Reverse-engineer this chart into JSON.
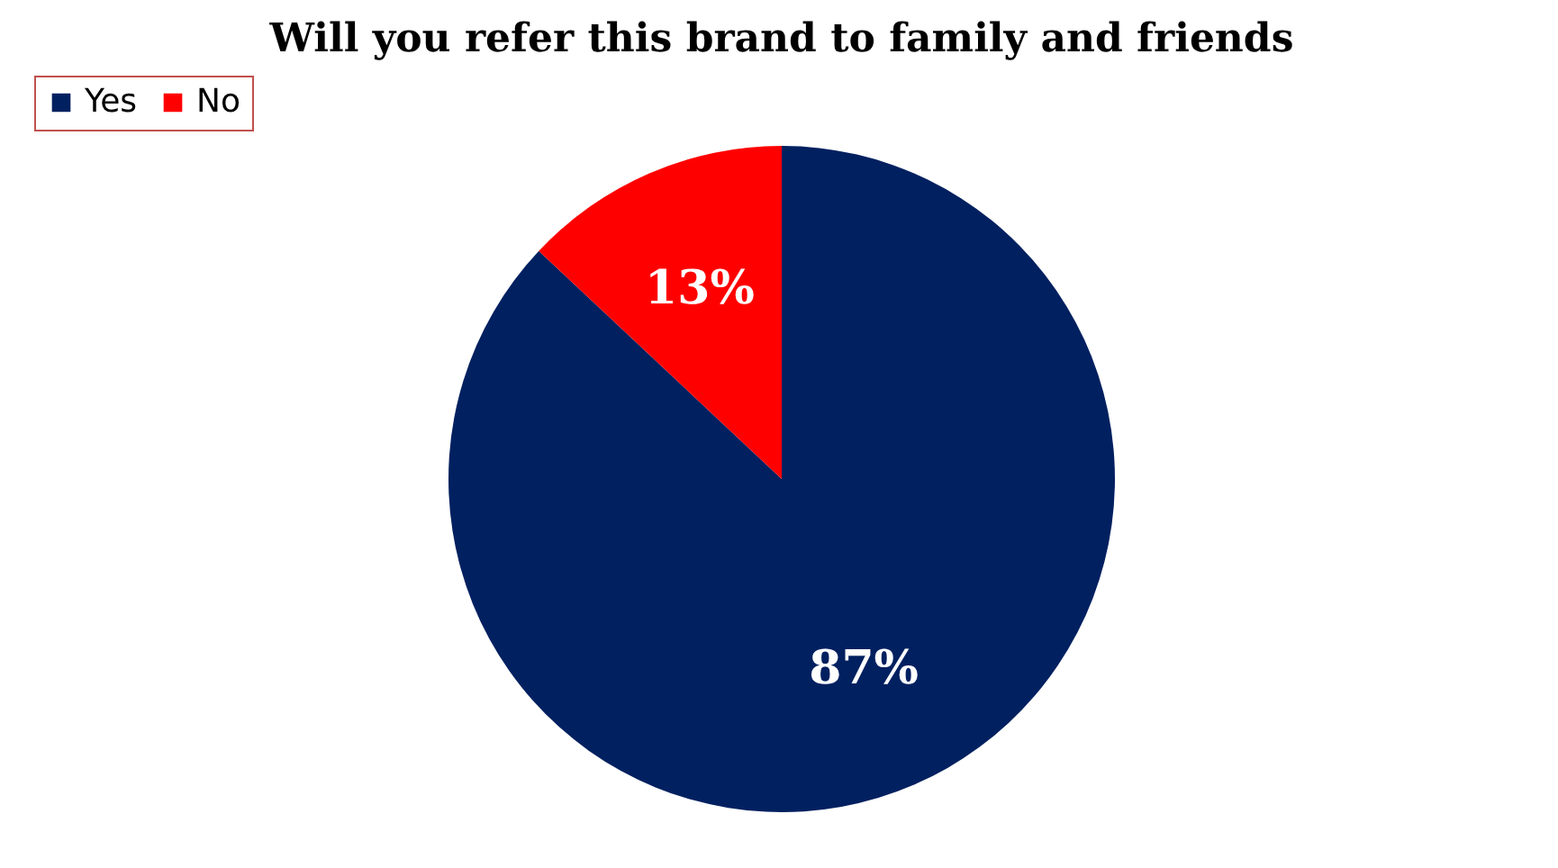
{
  "chart_data": {
    "type": "pie",
    "title": "Will you refer this brand to family and friends",
    "categories": [
      "Yes",
      "No"
    ],
    "values": [
      87,
      13
    ],
    "colors": [
      "#002060",
      "#ff0000"
    ],
    "value_labels": [
      "87%",
      "13%"
    ],
    "legend": "top"
  }
}
